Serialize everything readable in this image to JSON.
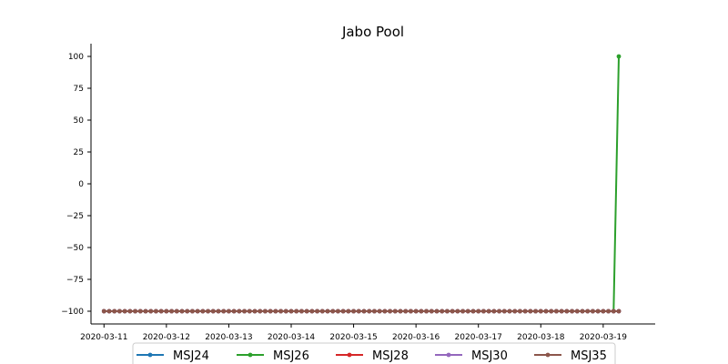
{
  "chart_data": {
    "type": "line",
    "title": "Jabo Pool",
    "xlabel": "",
    "ylabel": "",
    "x_start": "2020-03-11T00:00",
    "x_step_hours": 2,
    "x_ticks": [
      "2020-03-11",
      "2020-03-12",
      "2020-03-13",
      "2020-03-14",
      "2020-03-15",
      "2020-03-16",
      "2020-03-17",
      "2020-03-18",
      "2020-03-19"
    ],
    "xlim": [
      "2020-03-10T19:00",
      "2020-03-19T20:00"
    ],
    "y_ticks": [
      100,
      75,
      50,
      25,
      0,
      -25,
      -50,
      -75,
      -100
    ],
    "ylim": [
      -110,
      110
    ],
    "grid": false,
    "legend_placement": "bottom-center",
    "series": [
      {
        "name": "MSJ24",
        "color": "#1f77b4",
        "points": 100,
        "default_value": -100,
        "overrides": {}
      },
      {
        "name": "MSJ26",
        "color": "#2ca02c",
        "points": 100,
        "default_value": -100,
        "overrides": {
          "99": 100
        }
      },
      {
        "name": "MSJ28",
        "color": "#d62728",
        "points": 100,
        "default_value": -100,
        "overrides": {}
      },
      {
        "name": "MSJ30",
        "color": "#9467bd",
        "points": 100,
        "default_value": -100,
        "overrides": {}
      },
      {
        "name": "MSJ35",
        "color": "#8c564b",
        "points": 100,
        "default_value": -100,
        "overrides": {}
      }
    ]
  }
}
